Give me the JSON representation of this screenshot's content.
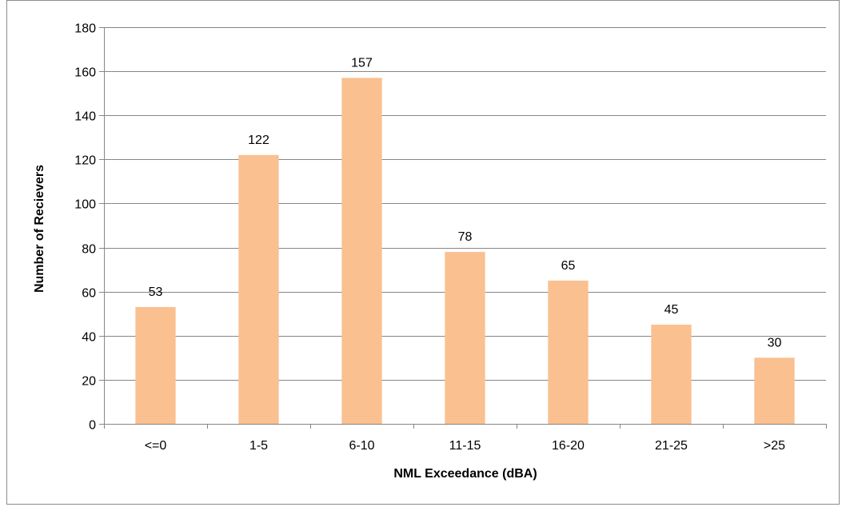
{
  "chart_data": {
    "type": "bar",
    "categories": [
      "<=0",
      "1-5",
      "6-10",
      "11-15",
      "16-20",
      "21-25",
      ">25"
    ],
    "values": [
      53,
      122,
      157,
      78,
      65,
      45,
      30
    ],
    "data_labels": [
      "53",
      "122",
      "157",
      "78",
      "65",
      "45",
      "30"
    ],
    "xlabel": "NML Exceedance (dBA)",
    "ylabel": "Number of Recievers",
    "ylim": [
      0,
      180
    ],
    "yticks": [
      0,
      20,
      40,
      60,
      80,
      100,
      120,
      140,
      160,
      180
    ],
    "grid": true,
    "legend": "none",
    "colors": {
      "bar": "#FAC090",
      "grid": "#868686",
      "axis": "#868686"
    }
  }
}
